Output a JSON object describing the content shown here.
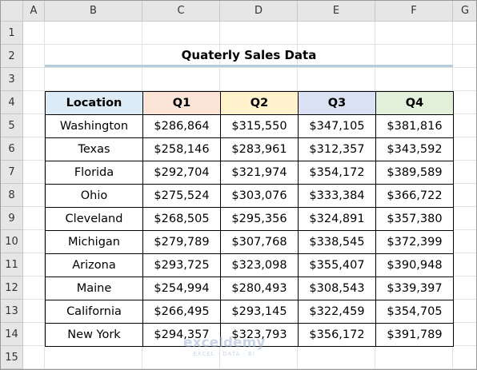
{
  "sheet": {
    "columns": [
      "A",
      "B",
      "C",
      "D",
      "E",
      "F",
      "G"
    ],
    "rows": [
      "1",
      "2",
      "3",
      "4",
      "5",
      "6",
      "7",
      "8",
      "9",
      "10",
      "11",
      "12",
      "13",
      "14",
      "15"
    ]
  },
  "title": "Quaterly Sales Data",
  "table": {
    "header": [
      "Location",
      "Q1",
      "Q2",
      "Q3",
      "Q4"
    ],
    "rows": [
      [
        "Washington",
        "$286,864",
        "$315,550",
        "$347,105",
        "$381,816"
      ],
      [
        "Texas",
        "$258,146",
        "$283,961",
        "$312,357",
        "$343,592"
      ],
      [
        "Florida",
        "$292,704",
        "$321,974",
        "$354,172",
        "$389,589"
      ],
      [
        "Ohio",
        "$275,524",
        "$303,076",
        "$333,384",
        "$366,722"
      ],
      [
        "Cleveland",
        "$268,505",
        "$295,356",
        "$324,891",
        "$357,380"
      ],
      [
        "Michigan",
        "$279,789",
        "$307,768",
        "$338,545",
        "$372,399"
      ],
      [
        "Arizona",
        "$293,725",
        "$323,098",
        "$355,407",
        "$390,948"
      ],
      [
        "Maine",
        "$254,994",
        "$280,493",
        "$308,543",
        "$339,397"
      ],
      [
        "California",
        "$266,495",
        "$293,145",
        "$322,459",
        "$354,705"
      ],
      [
        "New York",
        "$294,357",
        "$323,793",
        "$356,172",
        "$391,789"
      ]
    ]
  },
  "watermark": {
    "name": "exceldemy",
    "tagline": "EXCEL · DATA · BI"
  }
}
